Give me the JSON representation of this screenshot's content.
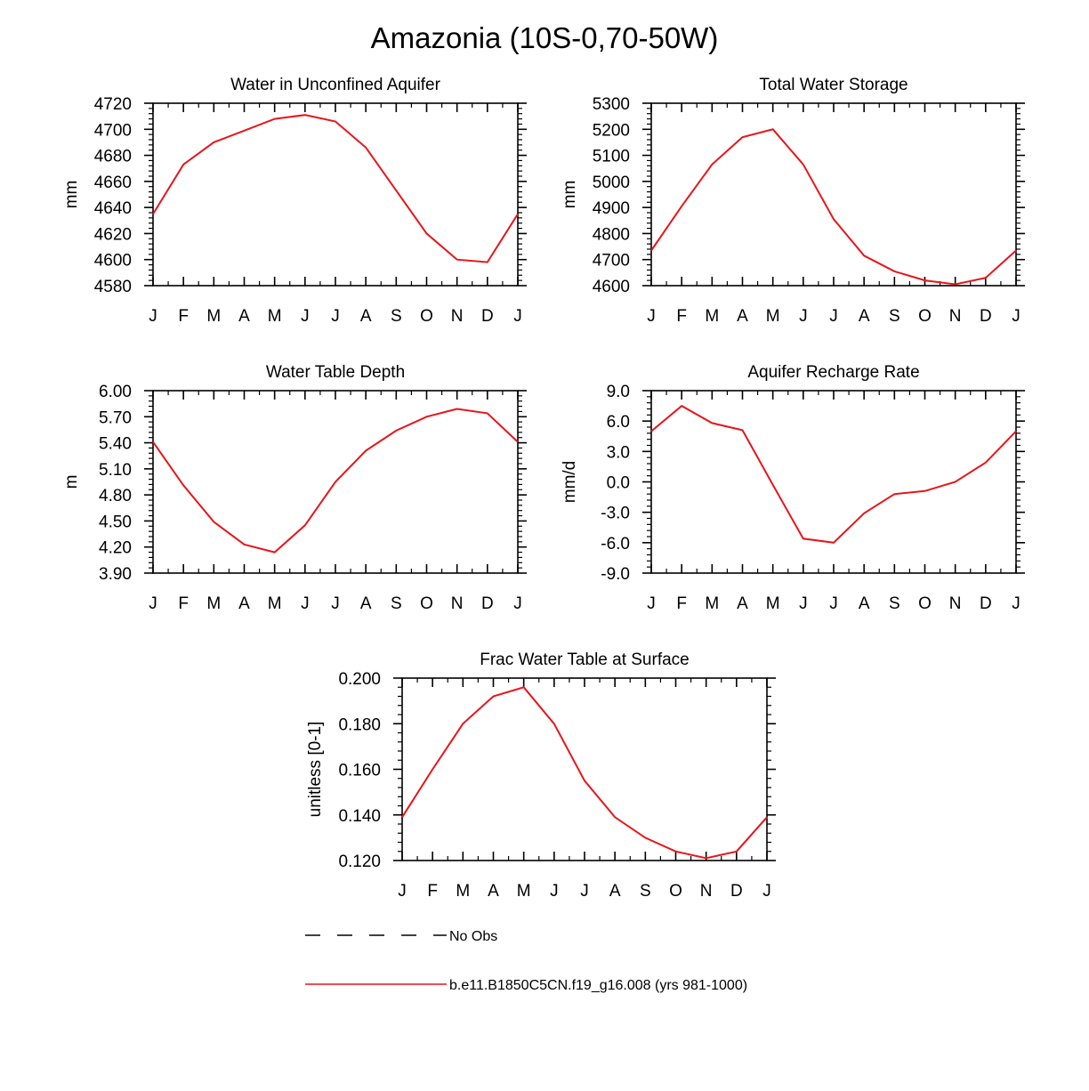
{
  "title": "Amazonia (10S-0,70-50W)",
  "month_labels": [
    "J",
    "F",
    "M",
    "A",
    "M",
    "J",
    "J",
    "A",
    "S",
    "O",
    "N",
    "D",
    "J"
  ],
  "line_color": "#e8141a",
  "chart_data": [
    {
      "type": "line",
      "title": "Water in Unconfined Aquifer",
      "ylabel": "mm",
      "ylim": [
        4580,
        4720
      ],
      "yticks": [
        "4580",
        "4600",
        "4620",
        "4640",
        "4660",
        "4680",
        "4700",
        "4720"
      ],
      "series": [
        {
          "name": "b.e11.B1850C5CN.f19_g16.008 (yrs 981-1000)",
          "values": [
            4635,
            4673,
            4690,
            4699,
            4708,
            4711,
            4706,
            4686,
            4653,
            4620,
            4600,
            4598,
            4635
          ]
        }
      ]
    },
    {
      "type": "line",
      "title": "Total Water Storage",
      "ylabel": "mm",
      "ylim": [
        4600,
        5300
      ],
      "yticks": [
        "4600",
        "4700",
        "4800",
        "4900",
        "5000",
        "5100",
        "5200",
        "5300"
      ],
      "series": [
        {
          "name": "b.e11.B1850C5CN.f19_g16.008 (yrs 981-1000)",
          "values": [
            4735,
            4905,
            5065,
            5170,
            5200,
            5065,
            4855,
            4715,
            4655,
            4620,
            4605,
            4630,
            4735
          ]
        }
      ]
    },
    {
      "type": "line",
      "title": "Water Table Depth",
      "ylabel": "m",
      "ylim": [
        3.9,
        6.0
      ],
      "yticks": [
        "3.90",
        "4.20",
        "4.50",
        "4.80",
        "5.10",
        "5.40",
        "5.70",
        "6.00"
      ],
      "series": [
        {
          "name": "b.e11.B1850C5CN.f19_g16.008 (yrs 981-1000)",
          "values": [
            5.41,
            4.91,
            4.49,
            4.23,
            4.14,
            4.45,
            4.95,
            5.31,
            5.54,
            5.7,
            5.79,
            5.74,
            5.41
          ]
        }
      ]
    },
    {
      "type": "line",
      "title": "Aquifer Recharge Rate",
      "ylabel": "mm/d",
      "ylim": [
        -9.0,
        9.0
      ],
      "yticks": [
        "-9.0",
        "-6.0",
        "-3.0",
        "0.0",
        "3.0",
        "6.0",
        "9.0"
      ],
      "series": [
        {
          "name": "b.e11.B1850C5CN.f19_g16.008 (yrs 981-1000)",
          "values": [
            5.0,
            7.5,
            5.8,
            5.1,
            -0.3,
            -5.6,
            -6.0,
            -3.1,
            -1.2,
            -0.9,
            0.0,
            1.9,
            5.0
          ]
        }
      ]
    },
    {
      "type": "line",
      "title": "Frac Water Table at Surface",
      "ylabel": "unitless [0-1]",
      "ylim": [
        0.12,
        0.2
      ],
      "yticks": [
        "0.120",
        "0.140",
        "0.160",
        "0.180",
        "0.200"
      ],
      "series": [
        {
          "name": "b.e11.B1850C5CN.f19_g16.008 (yrs 981-1000)",
          "values": [
            0.139,
            0.16,
            0.18,
            0.192,
            0.196,
            0.18,
            0.155,
            0.139,
            0.13,
            0.124,
            0.121,
            0.124,
            0.139
          ]
        }
      ]
    }
  ],
  "legend": [
    {
      "label": "No Obs",
      "style": "dashed",
      "color": "#000000"
    },
    {
      "label": "b.e11.B1850C5CN.f19_g16.008 (yrs 981-1000)",
      "style": "solid",
      "color": "#e8141a"
    }
  ]
}
